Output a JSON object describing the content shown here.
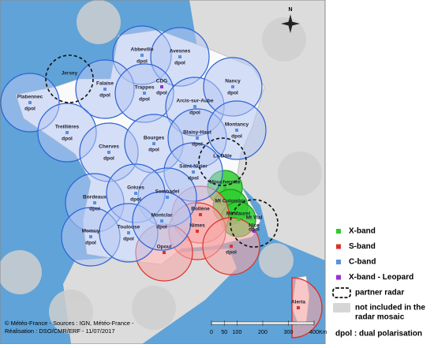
{
  "compass": "N",
  "legend": [
    {
      "label": "X-band",
      "color": "#2ecc2e",
      "stations": [
        {
          "name": "Moucherotte"
        },
        {
          "name": "Mt Colombis"
        },
        {
          "name": "Mt Maurel"
        }
      ]
    },
    {
      "label": "S-band",
      "color": "#d9342b",
      "stations": [
        {
          "name": "Bollène"
        },
        {
          "name": "Nimes"
        },
        {
          "name": "Opoul"
        },
        {
          "note": "dpol"
        },
        {
          "name": "Aleria"
        }
      ]
    },
    {
      "label": "C-band",
      "color": "#5b8fe0",
      "stations": [
        {
          "name": "Abbeville",
          "note": "dpol"
        },
        {
          "name": "Avesnes",
          "note": "dpol"
        },
        {
          "name": "Falaise",
          "note": "dpol"
        },
        {
          "name": "Trappes",
          "note": "dpol"
        },
        {
          "name": "Arcis-sur-Aube",
          "note": "dpol"
        },
        {
          "name": "Nancy",
          "note": "dpol"
        },
        {
          "name": "Plabennec",
          "note": "dpol"
        },
        {
          "name": "Treillières",
          "note": "dpol"
        },
        {
          "name": "Cherves",
          "note": "dpol"
        },
        {
          "name": "Bourges",
          "note": "dpol"
        },
        {
          "name": "Blaisy-Haut",
          "note": "dpol"
        },
        {
          "name": "Montancy",
          "note": "dpol"
        },
        {
          "name": "Saint-Nizier",
          "note": "dpol"
        },
        {
          "name": "Sembadel"
        },
        {
          "name": "Bordeaux",
          "note": "dpol"
        },
        {
          "name": "Grèzes",
          "note": "dpol"
        },
        {
          "name": "Momuy",
          "note": "dpol"
        },
        {
          "name": "Toulouse",
          "note": "dpol"
        },
        {
          "name": "Montclar",
          "note": "dpol"
        }
      ]
    },
    {
      "label": "X-band - Leopard",
      "color": "#9b30d0",
      "stations": [
        {
          "name": "CDG",
          "note": "dpol"
        },
        {
          "name": "Nice"
        }
      ]
    },
    {
      "label": "partner radar",
      "stations": [
        {
          "name": "Jersey"
        },
        {
          "name": "La Dôle"
        },
        {
          "name": "Mt Vial",
          "note": "dpol"
        }
      ]
    },
    {
      "label_lines": [
        "not included in the",
        "radar mosaic"
      ]
    }
  ],
  "dpol_note": "dpol : dual polarisation",
  "scale": {
    "ticks": [
      0,
      50,
      100,
      200,
      300,
      400
    ],
    "unit": "Km"
  },
  "credits": [
    "© Météo-France - Sources : IGN, Météo-France -",
    "Réalisation : DSO/CMR/ERF - 11/07/2017"
  ]
}
